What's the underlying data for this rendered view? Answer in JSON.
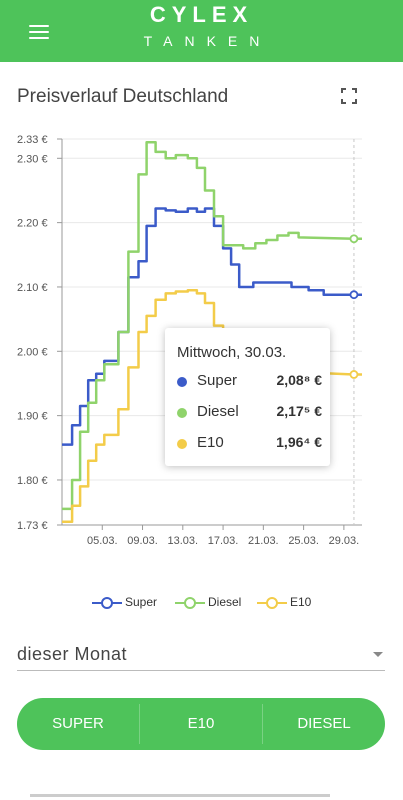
{
  "header": {
    "logo_text": "CYLEX",
    "logo_sub": "TANKEN",
    "brand_color": "#4ec35a",
    "accent_color": "#e53935",
    "menu_icon": "hamburger-menu-icon"
  },
  "title": "Preisverlauf Deutschland",
  "expand_icon": "fullscreen-icon",
  "tooltip": {
    "title": "Mittwoch, 30.03.",
    "rows": [
      {
        "label": "Super",
        "value": "2,08⁸ €",
        "color": "#3b5bc9"
      },
      {
        "label": "Diesel",
        "value": "2,17⁵ €",
        "color": "#8fd36b"
      },
      {
        "label": "E10",
        "value": "1,96⁴ €",
        "color": "#f3cc49"
      }
    ]
  },
  "chart_data": {
    "type": "line",
    "title": "",
    "xlabel": "",
    "ylabel": "",
    "ylim": [
      1.73,
      2.33
    ],
    "y_ticks": [
      {
        "value": 2.33,
        "label": "2.33 €"
      },
      {
        "value": 2.3,
        "label": "2.30 €"
      },
      {
        "value": 2.2,
        "label": "2.20 €"
      },
      {
        "value": 2.1,
        "label": "2.10 €"
      },
      {
        "value": 2.0,
        "label": "2.00 €"
      },
      {
        "value": 1.9,
        "label": "1.90 €"
      },
      {
        "value": 1.8,
        "label": "1.80 €"
      },
      {
        "value": 1.73,
        "label": "1.73 €"
      }
    ],
    "x_tick_labels": [
      {
        "day": 5,
        "label": "05.03."
      },
      {
        "day": 9,
        "label": "09.03."
      },
      {
        "day": 13,
        "label": "13.03."
      },
      {
        "day": 17,
        "label": "17.03."
      },
      {
        "day": 21,
        "label": "21.03."
      },
      {
        "day": 25,
        "label": "25.03."
      },
      {
        "day": 29,
        "label": "29.03."
      }
    ],
    "x_range": [
      1,
      30.8
    ],
    "hover_day": 30,
    "grid": true,
    "legend_position": "bottom",
    "series": [
      {
        "name": "Super",
        "color": "#3b5bc9",
        "values": [
          [
            1,
            1.855
          ],
          [
            2,
            1.855
          ],
          [
            2,
            1.885
          ],
          [
            2.8,
            1.885
          ],
          [
            2.8,
            1.915
          ],
          [
            3.6,
            1.915
          ],
          [
            3.6,
            1.955
          ],
          [
            4.4,
            1.955
          ],
          [
            4.4,
            1.965
          ],
          [
            5.2,
            1.965
          ],
          [
            5.2,
            1.985
          ],
          [
            6.6,
            1.985
          ],
          [
            6.6,
            2.03
          ],
          [
            7.6,
            2.03
          ],
          [
            7.6,
            2.115
          ],
          [
            8.6,
            2.115
          ],
          [
            8.6,
            2.14
          ],
          [
            9.4,
            2.14
          ],
          [
            9.4,
            2.195
          ],
          [
            10.3,
            2.195
          ],
          [
            10.3,
            2.222
          ],
          [
            11.3,
            2.222
          ],
          [
            11.3,
            2.219
          ],
          [
            12.3,
            2.219
          ],
          [
            12.3,
            2.217
          ],
          [
            13.5,
            2.217
          ],
          [
            13.5,
            2.222
          ],
          [
            14.4,
            2.222
          ],
          [
            14.4,
            2.217
          ],
          [
            15.2,
            2.217
          ],
          [
            15.2,
            2.222
          ],
          [
            16.1,
            2.222
          ],
          [
            16.1,
            2.195
          ],
          [
            17,
            2.195
          ],
          [
            17,
            2.16
          ],
          [
            17.8,
            2.16
          ],
          [
            17.8,
            2.135
          ],
          [
            18.6,
            2.135
          ],
          [
            18.6,
            2.1
          ],
          [
            20,
            2.1
          ],
          [
            20,
            2.107
          ],
          [
            23.8,
            2.107
          ],
          [
            23.8,
            2.1
          ],
          [
            25.5,
            2.1
          ],
          [
            25.5,
            2.095
          ],
          [
            27,
            2.095
          ],
          [
            27,
            2.088
          ],
          [
            30,
            2.088
          ],
          [
            30.8,
            2.088
          ]
        ]
      },
      {
        "name": "Diesel",
        "color": "#8fd36b",
        "values": [
          [
            1,
            1.755
          ],
          [
            2,
            1.755
          ],
          [
            2,
            1.8
          ],
          [
            2.8,
            1.8
          ],
          [
            2.8,
            1.875
          ],
          [
            3.6,
            1.875
          ],
          [
            3.6,
            1.92
          ],
          [
            4.4,
            1.92
          ],
          [
            4.4,
            1.955
          ],
          [
            5.2,
            1.955
          ],
          [
            5.2,
            1.98
          ],
          [
            6.6,
            1.98
          ],
          [
            6.6,
            2.03
          ],
          [
            7.6,
            2.03
          ],
          [
            7.6,
            2.155
          ],
          [
            8.6,
            2.155
          ],
          [
            8.6,
            2.275
          ],
          [
            9.4,
            2.275
          ],
          [
            9.4,
            2.325
          ],
          [
            10.3,
            2.325
          ],
          [
            10.3,
            2.31
          ],
          [
            11.3,
            2.31
          ],
          [
            11.3,
            2.3
          ],
          [
            12.3,
            2.3
          ],
          [
            12.3,
            2.305
          ],
          [
            13.5,
            2.305
          ],
          [
            13.5,
            2.3
          ],
          [
            14.4,
            2.3
          ],
          [
            14.4,
            2.285
          ],
          [
            15.2,
            2.285
          ],
          [
            15.2,
            2.25
          ],
          [
            16.1,
            2.25
          ],
          [
            16.1,
            2.21
          ],
          [
            17,
            2.21
          ],
          [
            17,
            2.165
          ],
          [
            19,
            2.165
          ],
          [
            19,
            2.16
          ],
          [
            20.2,
            2.16
          ],
          [
            20.2,
            2.168
          ],
          [
            21.3,
            2.168
          ],
          [
            21.3,
            2.173
          ],
          [
            22.4,
            2.173
          ],
          [
            22.4,
            2.18
          ],
          [
            23.5,
            2.18
          ],
          [
            23.5,
            2.184
          ],
          [
            24.5,
            2.184
          ],
          [
            24.5,
            2.177
          ],
          [
            30,
            2.175
          ],
          [
            30.8,
            2.175
          ]
        ]
      },
      {
        "name": "E10",
        "color": "#f3cc49",
        "values": [
          [
            1,
            1.735
          ],
          [
            2,
            1.735
          ],
          [
            2,
            1.76
          ],
          [
            2.8,
            1.76
          ],
          [
            2.8,
            1.79
          ],
          [
            3.6,
            1.79
          ],
          [
            3.6,
            1.83
          ],
          [
            4.4,
            1.83
          ],
          [
            4.4,
            1.855
          ],
          [
            5.2,
            1.855
          ],
          [
            5.2,
            1.87
          ],
          [
            6.6,
            1.87
          ],
          [
            6.6,
            1.91
          ],
          [
            7.6,
            1.91
          ],
          [
            7.6,
            1.975
          ],
          [
            8.6,
            1.975
          ],
          [
            8.6,
            2.03
          ],
          [
            9.4,
            2.03
          ],
          [
            9.4,
            2.055
          ],
          [
            10.3,
            2.055
          ],
          [
            10.3,
            2.08
          ],
          [
            11.3,
            2.08
          ],
          [
            11.3,
            2.09
          ],
          [
            12.3,
            2.09
          ],
          [
            12.3,
            2.093
          ],
          [
            13.5,
            2.093
          ],
          [
            13.5,
            2.095
          ],
          [
            14.4,
            2.095
          ],
          [
            14.4,
            2.09
          ],
          [
            15.2,
            2.09
          ],
          [
            15.2,
            2.075
          ],
          [
            16.1,
            2.075
          ],
          [
            16.1,
            2.04
          ],
          [
            17,
            2.04
          ],
          [
            17,
            2.0
          ],
          [
            17.8,
            2.0
          ],
          [
            17.8,
            1.975
          ],
          [
            24,
            1.975
          ],
          [
            24,
            1.968
          ],
          [
            30,
            1.964
          ],
          [
            30.8,
            1.964
          ]
        ]
      }
    ]
  },
  "legend": [
    {
      "label": "Super",
      "color": "#3b5bc9"
    },
    {
      "label": "Diesel",
      "color": "#8fd36b"
    },
    {
      "label": "E10",
      "color": "#f3cc49"
    }
  ],
  "period_select": {
    "value": "dieser Monat"
  },
  "fuel_tabs": [
    {
      "label": "SUPER"
    },
    {
      "label": "E10"
    },
    {
      "label": "DIESEL"
    }
  ]
}
